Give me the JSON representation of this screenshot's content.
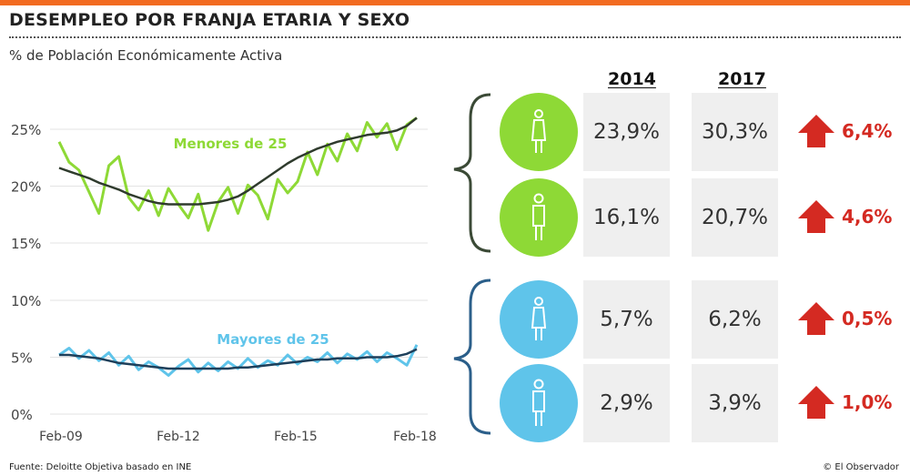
{
  "title": "DESEMPLEO POR FRANJA ETARIA Y SEXO",
  "subtitle": "% de Población Económicamente Activa",
  "colors": {
    "accent_bar": "#f26b21",
    "green": "#8ed936",
    "green_trend": "#2f3b2d",
    "blue": "#5fc4ea",
    "blue_trend": "#1e3f5a",
    "arrow": "#d42a22",
    "green_brace": "#3b4a36",
    "blue_brace": "#2b5f8a"
  },
  "chart_data": [
    {
      "type": "line",
      "title": "",
      "x_ticks": [
        "Feb-09",
        "Feb-12",
        "Feb-15",
        "Feb-18"
      ],
      "y_ticks": [
        "15%",
        "20%",
        "25%"
      ],
      "ylim": [
        15,
        26.5
      ],
      "annotation": "Menores de 25",
      "x": [
        "Feb-09",
        "May-09",
        "Aug-09",
        "Nov-09",
        "Feb-10",
        "May-10",
        "Aug-10",
        "Nov-10",
        "Feb-11",
        "May-11",
        "Aug-11",
        "Nov-11",
        "Feb-12",
        "May-12",
        "Aug-12",
        "Nov-12",
        "Feb-13",
        "May-13",
        "Aug-13",
        "Nov-13",
        "Feb-14",
        "May-14",
        "Aug-14",
        "Nov-14",
        "Feb-15",
        "May-15",
        "Aug-15",
        "Nov-15",
        "Feb-16",
        "May-16",
        "Aug-16",
        "Nov-16",
        "Feb-17",
        "May-17",
        "Aug-17",
        "Nov-17",
        "Feb-18"
      ],
      "series": [
        {
          "values": [
            23.9,
            22.1,
            21.4,
            19.5,
            17.6,
            21.8,
            22.6,
            19.0,
            17.9,
            19.6,
            17.4,
            19.8,
            18.4,
            17.2,
            19.3,
            16.1,
            18.6,
            19.9,
            17.6,
            20.1,
            19.2,
            17.1,
            20.6,
            19.4,
            20.4,
            23.0,
            21.0,
            23.7,
            22.2,
            24.6,
            23.1,
            25.6,
            24.3,
            25.5,
            23.2,
            25.4,
            26.0
          ]
        },
        {
          "values": [
            21.6,
            21.3,
            21.0,
            20.7,
            20.3,
            20.0,
            19.7,
            19.3,
            19.0,
            18.7,
            18.5,
            18.4,
            18.4,
            18.4,
            18.4,
            18.5,
            18.6,
            18.8,
            19.1,
            19.6,
            20.2,
            20.8,
            21.4,
            22.0,
            22.5,
            22.9,
            23.3,
            23.6,
            23.9,
            24.1,
            24.3,
            24.5,
            24.6,
            24.7,
            24.9,
            25.3,
            26.0
          ]
        }
      ]
    },
    {
      "type": "line",
      "title": "",
      "x_ticks": [
        "Feb-09",
        "Feb-12",
        "Feb-15",
        "Feb-18"
      ],
      "y_ticks": [
        "0%",
        "5%",
        "10%"
      ],
      "ylim": [
        0,
        10
      ],
      "annotation": "Mayores de 25",
      "x": [
        "Feb-09",
        "May-09",
        "Aug-09",
        "Nov-09",
        "Feb-10",
        "May-10",
        "Aug-10",
        "Nov-10",
        "Feb-11",
        "May-11",
        "Aug-11",
        "Nov-11",
        "Feb-12",
        "May-12",
        "Aug-12",
        "Nov-12",
        "Feb-13",
        "May-13",
        "Aug-13",
        "Nov-13",
        "Feb-14",
        "May-14",
        "Aug-14",
        "Nov-14",
        "Feb-15",
        "May-15",
        "Aug-15",
        "Nov-15",
        "Feb-16",
        "May-16",
        "Aug-16",
        "Nov-16",
        "Feb-17",
        "May-17",
        "Aug-17",
        "Nov-17",
        "Feb-18"
      ],
      "series": [
        {
          "values": [
            5.2,
            5.8,
            4.9,
            5.6,
            4.7,
            5.4,
            4.3,
            5.1,
            3.9,
            4.6,
            4.1,
            3.4,
            4.2,
            4.8,
            3.7,
            4.5,
            3.8,
            4.6,
            4.0,
            4.9,
            4.1,
            4.7,
            4.3,
            5.2,
            4.4,
            5.0,
            4.6,
            5.4,
            4.5,
            5.3,
            4.8,
            5.5,
            4.6,
            5.4,
            4.9,
            4.3,
            6.1
          ]
        },
        {
          "values": [
            5.2,
            5.2,
            5.1,
            5.0,
            4.9,
            4.7,
            4.5,
            4.4,
            4.3,
            4.2,
            4.1,
            4.0,
            4.0,
            4.0,
            4.0,
            4.0,
            4.0,
            4.0,
            4.1,
            4.1,
            4.2,
            4.3,
            4.4,
            4.5,
            4.6,
            4.7,
            4.8,
            4.8,
            4.9,
            4.9,
            4.9,
            5.0,
            5.0,
            5.0,
            5.1,
            5.3,
            5.7
          ]
        }
      ]
    },
    {
      "type": "table",
      "columns": [
        "2014",
        "2017"
      ],
      "rows": [
        {
          "icon": "woman-icon",
          "group": "green",
          "v2014": "23,9%",
          "v2017": "30,3%",
          "change": "6,4%"
        },
        {
          "icon": "man-icon",
          "group": "green",
          "v2014": "16,1%",
          "v2017": "20,7%",
          "change": "4,6%"
        },
        {
          "icon": "woman-icon",
          "group": "blue",
          "v2014": "5,7%",
          "v2017": "6,2%",
          "change": "0,5%"
        },
        {
          "icon": "man-icon",
          "group": "blue",
          "v2014": "2,9%",
          "v2017": "3,9%",
          "change": "1,0%"
        }
      ]
    }
  ],
  "footer": {
    "source": "Fuente: Deloitte Objetiva basado en INE",
    "credit": "© El Observador"
  }
}
